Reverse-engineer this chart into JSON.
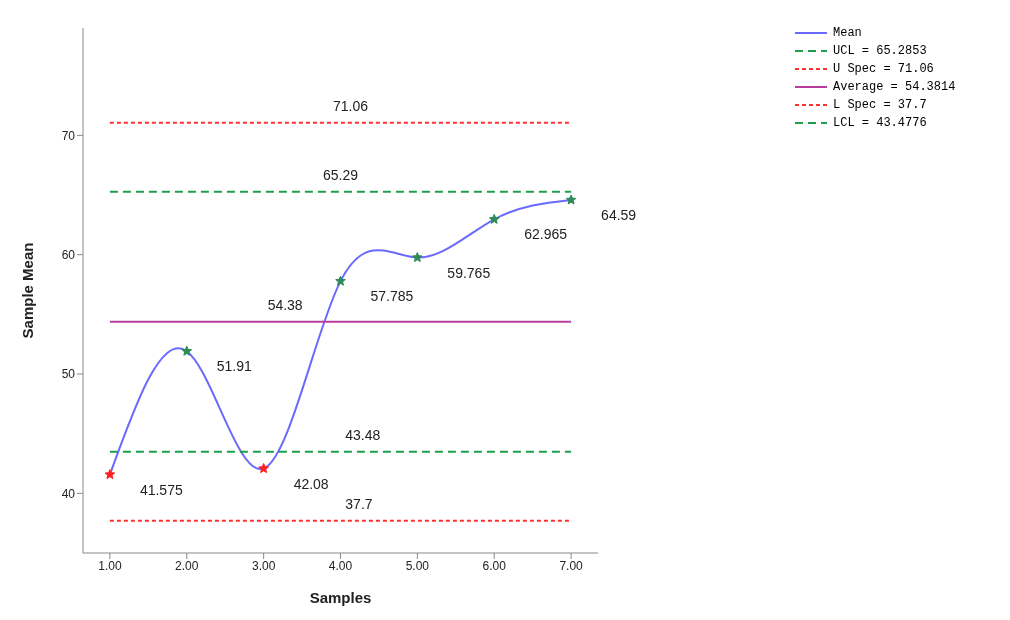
{
  "chart_data": {
    "type": "line",
    "xlabel": "Samples",
    "ylabel": "Sample Mean",
    "xlim": [
      0.65,
      7.35
    ],
    "ylim": [
      35,
      79
    ],
    "xticks": [
      {
        "value": 1,
        "label": "1.00"
      },
      {
        "value": 2,
        "label": "2.00"
      },
      {
        "value": 3,
        "label": "3.00"
      },
      {
        "value": 4,
        "label": "4.00"
      },
      {
        "value": 5,
        "label": "5.00"
      },
      {
        "value": 6,
        "label": "6.00"
      },
      {
        "value": 7,
        "label": "7.00"
      }
    ],
    "yticks": [
      40,
      50,
      60,
      70
    ],
    "grid": false,
    "legend": "top right",
    "series": [
      {
        "name": "Mean",
        "type": "line",
        "color": "#6a6aff",
        "line_style": "solid",
        "marker": "star",
        "x": [
          1,
          2,
          3,
          4,
          5,
          6,
          7
        ],
        "values": [
          41.575,
          51.91,
          42.08,
          57.785,
          59.765,
          62.965,
          64.59
        ],
        "value_labels": [
          "41.575",
          "51.91",
          "42.08",
          "57.785",
          "59.765",
          "62.965",
          "64.59"
        ],
        "colors": [
          "#ff2020",
          "#2e8b57",
          "#ff2020",
          "#2e8b57",
          "#2e8b57",
          "#2e8b57",
          "#2e8b57"
        ]
      },
      {
        "name": "UCL = 65.2853",
        "type": "line",
        "color": "#1e9e4a",
        "line_style": "dashed",
        "marker": "none",
        "x": [
          1,
          7
        ],
        "values": [
          65.2853,
          65.2853
        ]
      },
      {
        "name": "U Spec = 71.06",
        "type": "line",
        "color": "#ff3030",
        "line_style": "dotted",
        "marker": "none",
        "x": [
          1,
          7
        ],
        "values": [
          71.06,
          71.06
        ]
      },
      {
        "name": "Average = 54.3814",
        "type": "line",
        "color": "#b83d9c",
        "line_style": "solid",
        "marker": "none",
        "x": [
          1,
          7
        ],
        "values": [
          54.3814,
          54.3814
        ]
      },
      {
        "name": "L Spec = 37.7",
        "type": "line",
        "color": "#ff3030",
        "line_style": "dotted",
        "marker": "none",
        "x": [
          1,
          7
        ],
        "values": [
          37.7,
          37.7
        ]
      },
      {
        "name": "LCL = 43.4776",
        "type": "line",
        "color": "#1e9e4a",
        "line_style": "dashed",
        "marker": "none",
        "x": [
          1,
          7
        ],
        "values": [
          43.4776,
          43.4776
        ]
      }
    ],
    "annotations": [
      {
        "text": "71.06",
        "x": 4.13,
        "y": 71.06
      },
      {
        "text": "65.29",
        "x": 4.0,
        "y": 65.2853
      },
      {
        "text": "54.38",
        "x": 3.28,
        "y": 54.3814
      },
      {
        "text": "43.48",
        "x": 4.29,
        "y": 43.4776
      },
      {
        "text": "37.7",
        "x": 4.24,
        "y": 37.7
      }
    ]
  }
}
